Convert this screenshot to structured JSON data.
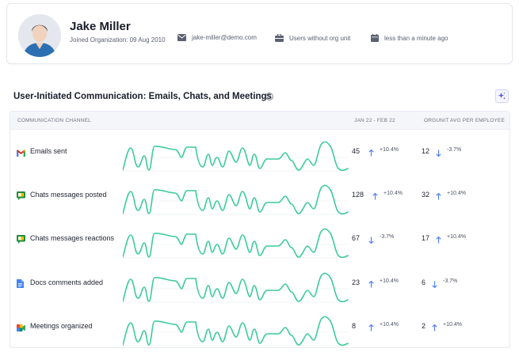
{
  "profile": {
    "name": "Jake Miller",
    "joined": "Joined Organization: 09 Aug 2010",
    "email": "jake-miller@demo.com",
    "org_unit": "Users without org unit",
    "last_seen": "less than a minute ago"
  },
  "section": {
    "title": "User-Initiated Communication: Emails, Chats, and Meetings"
  },
  "table": {
    "headers": {
      "channel": "COMMUNICATION CHANNEL",
      "period": "JAN 22 - FEB 22",
      "orgunit": "ORGUNIT AVG PER EMPLOYEE"
    },
    "rows": [
      {
        "icon": "gmail-icon",
        "label": "Emails sent",
        "value": "45",
        "value_trend": "up",
        "value_change": "+10.4%",
        "avg": "12",
        "avg_trend": "down",
        "avg_change": "-3.7%"
      },
      {
        "icon": "chat-icon",
        "label": "Chats messages posted",
        "value": "128",
        "value_trend": "up",
        "value_change": "+10.4%",
        "avg": "32",
        "avg_trend": "up",
        "avg_change": "+10.4%"
      },
      {
        "icon": "chat-icon",
        "label": "Chats messages reactions",
        "value": "67",
        "value_trend": "down",
        "value_change": "-3.7%",
        "avg": "17",
        "avg_trend": "up",
        "avg_change": "+10.4%"
      },
      {
        "icon": "docs-icon",
        "label": "Docs comments added",
        "value": "23",
        "value_trend": "up",
        "value_change": "+10.4%",
        "avg": "6",
        "avg_trend": "down",
        "avg_change": "-3.7%"
      },
      {
        "icon": "meet-icon",
        "label": "Meetings organized",
        "value": "8",
        "value_trend": "up",
        "value_change": "+10.4%",
        "avg": "2",
        "avg_trend": "up",
        "avg_change": "+10.4%"
      }
    ]
  },
  "colors": {
    "sparkline": "#3dcc9b",
    "trend_arrow": "#4a7cf0",
    "accent": "#5b5bd6"
  }
}
